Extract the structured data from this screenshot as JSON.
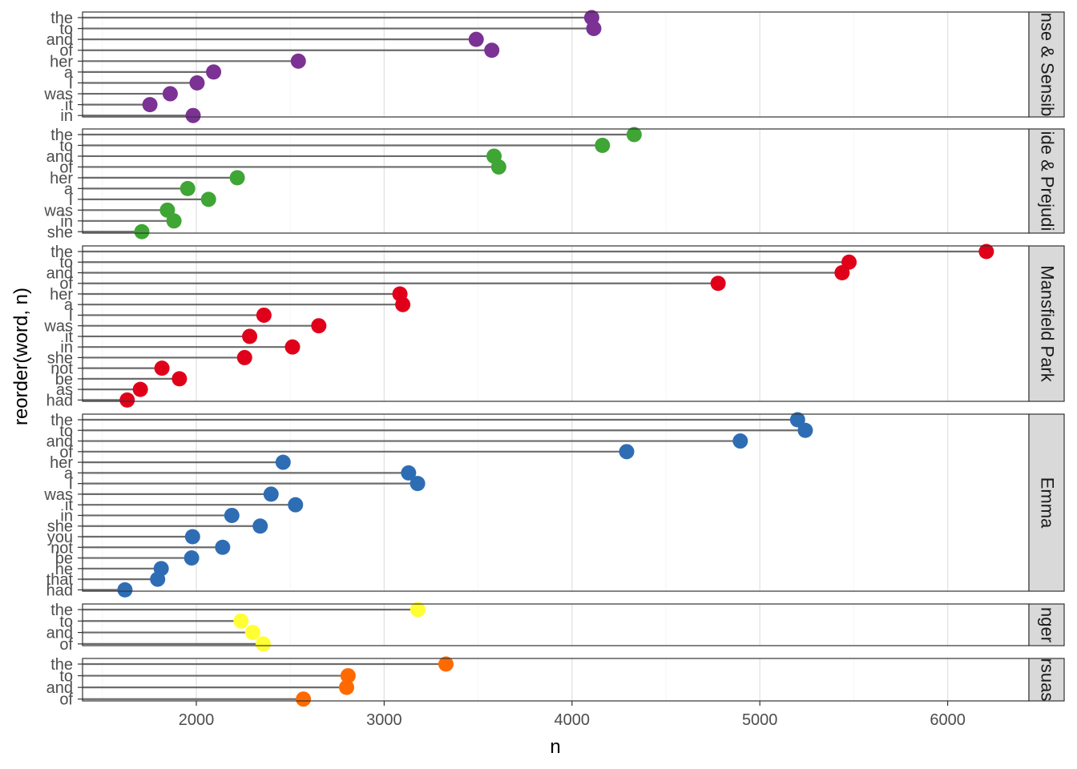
{
  "chart_data": {
    "type": "lollipop",
    "xlabel": "n",
    "ylabel": "reorder(word, n)",
    "xlim": [
      1400,
      6450
    ],
    "xticks": [
      2000,
      3000,
      4000,
      5000,
      6000
    ],
    "grid": true,
    "colors": {
      "Sense & Sensibility": "#7b3294",
      "Pride & Prejudice": "#3fa535",
      "Mansfield Park": "#e0001a",
      "Emma": "#2e6db4",
      "Northanger Abbey": "#ffff33",
      "Persuasion": "#ff6a00"
    },
    "panels": [
      {
        "book": "Sense & Sensibility",
        "strip": "nse & Sensib",
        "words": [
          "the",
          "to",
          "and",
          "of",
          "her",
          "a",
          "I",
          "was",
          "it",
          "in"
        ],
        "values": [
          4105,
          4116,
          3490,
          3573,
          2543,
          2092,
          2004,
          1861,
          1753,
          1983
        ]
      },
      {
        "book": "Pride & Prejudice",
        "strip": "ide & Prejudi",
        "words": [
          "the",
          "to",
          "and",
          "of",
          "her",
          "a",
          "I",
          "was",
          "in",
          "she"
        ],
        "values": [
          4331,
          4162,
          3585,
          3610,
          2218,
          1954,
          2065,
          1846,
          1881,
          1710
        ]
      },
      {
        "book": "Mansfield Park",
        "strip": "Mansfield Park",
        "words": [
          "the",
          "to",
          "and",
          "of",
          "her",
          "a",
          "I",
          "was",
          "it",
          "in",
          "she",
          "not",
          "be",
          "as",
          "had"
        ],
        "values": [
          6206,
          5475,
          5438,
          4778,
          3084,
          3099,
          2360,
          2652,
          2284,
          2512,
          2257,
          1817,
          1910,
          1702,
          1632
        ]
      },
      {
        "book": "Emma",
        "strip": "Emma",
        "words": [
          "the",
          "to",
          "and",
          "of",
          "her",
          "a",
          "I",
          "was",
          "it",
          "in",
          "she",
          "you",
          "not",
          "be",
          "he",
          "that",
          "had"
        ],
        "values": [
          5201,
          5242,
          4896,
          4291,
          2462,
          3130,
          3178,
          2398,
          2528,
          2189,
          2340,
          1980,
          2140,
          1975,
          1813,
          1794,
          1620
        ]
      },
      {
        "book": "Northanger Abbey",
        "strip": "nger",
        "words": [
          "the",
          "to",
          "and",
          "of"
        ],
        "values": [
          3179,
          2238,
          2300,
          2356
        ]
      },
      {
        "book": "Persuasion",
        "strip": "rsuas",
        "words": [
          "the",
          "to",
          "and",
          "of"
        ],
        "values": [
          3329,
          2808,
          2800,
          2570
        ]
      }
    ]
  }
}
